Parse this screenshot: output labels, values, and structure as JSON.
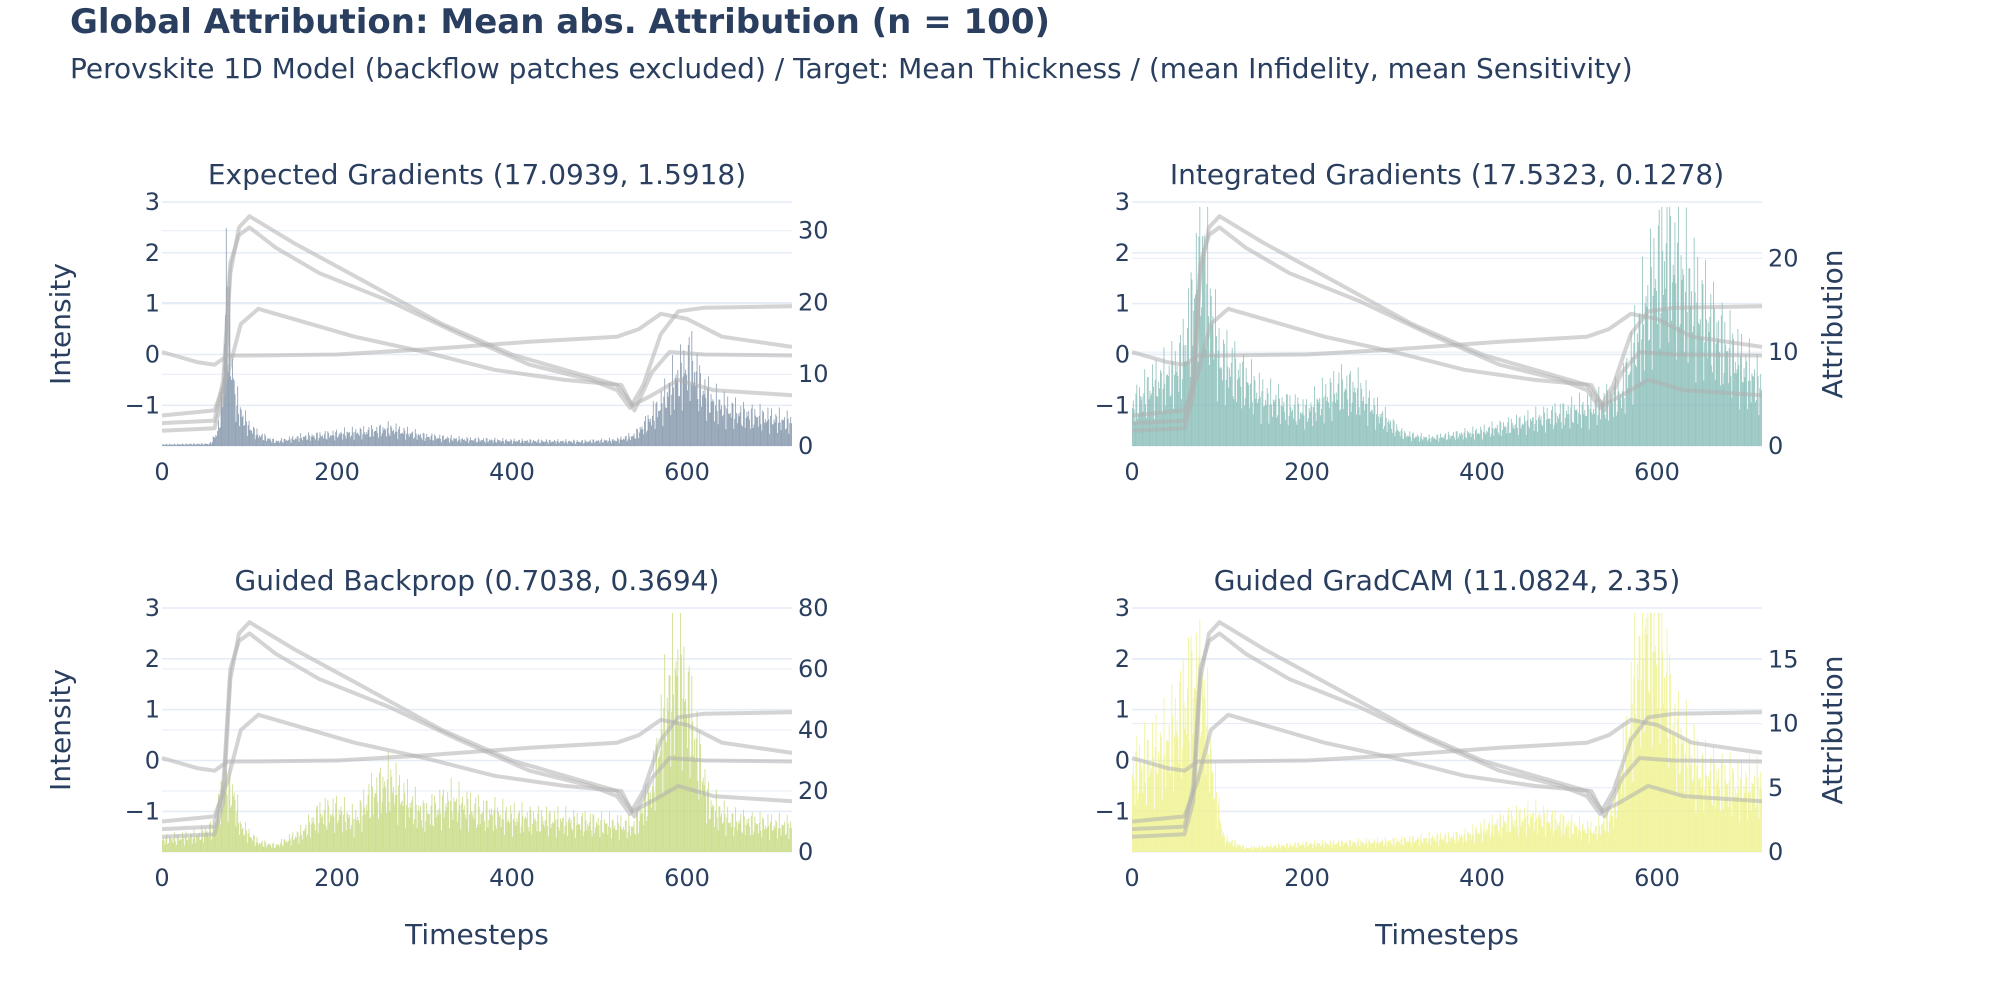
{
  "figure": {
    "title": "Global Attribution: Mean abs. Attribution (n = 100)",
    "subtitle": "Perovskite 1D Model (backflow patches excluded) / Target: Mean Thickness / (mean Infidelity, mean Sensitivity)"
  },
  "colors": {
    "text": "#2a3f5f",
    "grid": "#e5ecf6",
    "signal_lines": "#b0b0b0"
  },
  "chart_data": [
    {
      "type": "bar",
      "title": "Expected Gradients (17.0939, 1.5918)",
      "xlabel": "",
      "ylabel": "Intensity",
      "y2label": "",
      "xlim": [
        0,
        720
      ],
      "xticks": [
        0,
        200,
        400,
        600
      ],
      "ylim": [
        -1.8,
        3
      ],
      "yticks": [
        -1,
        0,
        1,
        2,
        3
      ],
      "y2lim": [
        0,
        34
      ],
      "y2ticks": [
        0,
        10,
        20,
        30
      ],
      "bar_color": "#7f93a8",
      "attribution_profile": [
        [
          0,
          0.2
        ],
        [
          55,
          0.3
        ],
        [
          64,
          2
        ],
        [
          70,
          8
        ],
        [
          74,
          25
        ],
        [
          78,
          14
        ],
        [
          84,
          6
        ],
        [
          92,
          4
        ],
        [
          100,
          2.5
        ],
        [
          110,
          1.5
        ],
        [
          130,
          0.6
        ],
        [
          160,
          1.2
        ],
        [
          200,
          1.6
        ],
        [
          240,
          2
        ],
        [
          260,
          2.3
        ],
        [
          300,
          1.3
        ],
        [
          340,
          0.9
        ],
        [
          400,
          0.7
        ],
        [
          480,
          0.6
        ],
        [
          520,
          0.8
        ],
        [
          540,
          1.4
        ],
        [
          555,
          3.2
        ],
        [
          570,
          5.5
        ],
        [
          585,
          8.5
        ],
        [
          595,
          10
        ],
        [
          605,
          11.5
        ],
        [
          615,
          8
        ],
        [
          630,
          5.8
        ],
        [
          660,
          4.3
        ],
        [
          690,
          3.8
        ],
        [
          720,
          3.2
        ]
      ]
    },
    {
      "type": "bar",
      "title": "Integrated Gradients (17.5323, 0.1278)",
      "xlabel": "",
      "ylabel": "",
      "y2label": "Attribution",
      "xlim": [
        0,
        720
      ],
      "xticks": [
        0,
        200,
        400,
        600
      ],
      "ylim": [
        -1.8,
        3
      ],
      "yticks": [
        -1,
        0,
        1,
        2,
        3
      ],
      "y2lim": [
        0,
        26
      ],
      "y2ticks": [
        0,
        10,
        20
      ],
      "bar_color": "#86bcb6",
      "attribution_profile": [
        [
          0,
          4
        ],
        [
          20,
          6
        ],
        [
          40,
          7
        ],
        [
          55,
          8.5
        ],
        [
          65,
          12
        ],
        [
          75,
          18
        ],
        [
          82,
          20
        ],
        [
          90,
          14
        ],
        [
          100,
          9
        ],
        [
          120,
          7.5
        ],
        [
          150,
          5
        ],
        [
          180,
          4
        ],
        [
          200,
          3.5
        ],
        [
          220,
          5
        ],
        [
          240,
          6
        ],
        [
          260,
          5.5
        ],
        [
          280,
          3.5
        ],
        [
          310,
          1.2
        ],
        [
          340,
          0.8
        ],
        [
          400,
          1.5
        ],
        [
          450,
          2.5
        ],
        [
          500,
          3.5
        ],
        [
          530,
          4
        ],
        [
          560,
          5.5
        ],
        [
          580,
          12
        ],
        [
          600,
          18
        ],
        [
          610,
          20
        ],
        [
          630,
          17
        ],
        [
          650,
          14
        ],
        [
          680,
          10
        ],
        [
          700,
          8
        ],
        [
          720,
          6
        ]
      ]
    },
    {
      "type": "bar",
      "title": "Guided Backprop (0.7038, 0.3694)",
      "xlabel": "Timesteps",
      "ylabel": "Intensity",
      "y2label": "",
      "xlim": [
        0,
        720
      ],
      "xticks": [
        0,
        200,
        400,
        600
      ],
      "ylim": [
        -1.8,
        3
      ],
      "yticks": [
        -1,
        0,
        1,
        2,
        3
      ],
      "y2lim": [
        0,
        80
      ],
      "y2ticks": [
        0,
        20,
        40,
        60,
        80
      ],
      "bar_color": "#c6d97e",
      "attribution_profile": [
        [
          0,
          4
        ],
        [
          40,
          5
        ],
        [
          60,
          8
        ],
        [
          70,
          20
        ],
        [
          80,
          20
        ],
        [
          90,
          8
        ],
        [
          110,
          3
        ],
        [
          130,
          2
        ],
        [
          160,
          6
        ],
        [
          180,
          12
        ],
        [
          200,
          13
        ],
        [
          220,
          10
        ],
        [
          240,
          18
        ],
        [
          260,
          22
        ],
        [
          280,
          16
        ],
        [
          300,
          12
        ],
        [
          330,
          16
        ],
        [
          360,
          13
        ],
        [
          400,
          11
        ],
        [
          450,
          10
        ],
        [
          500,
          9
        ],
        [
          540,
          8
        ],
        [
          560,
          20
        ],
        [
          575,
          45
        ],
        [
          590,
          58
        ],
        [
          600,
          48
        ],
        [
          610,
          35
        ],
        [
          625,
          15
        ],
        [
          650,
          10
        ],
        [
          680,
          9
        ],
        [
          720,
          8
        ]
      ]
    },
    {
      "type": "bar",
      "title": "Guided GradCAM (11.0824, 2.35)",
      "xlabel": "Timesteps",
      "ylabel": "",
      "y2label": "Attribution",
      "xlim": [
        0,
        720
      ],
      "xticks": [
        0,
        200,
        400,
        600
      ],
      "ylim": [
        -1.8,
        3
      ],
      "yticks": [
        -1,
        0,
        1,
        2,
        3
      ],
      "y2lim": [
        0,
        19
      ],
      "y2ticks": [
        0,
        5,
        10,
        15
      ],
      "bar_color": "#eef28c",
      "attribution_profile": [
        [
          0,
          6
        ],
        [
          20,
          7
        ],
        [
          40,
          8
        ],
        [
          60,
          11
        ],
        [
          72,
          13
        ],
        [
          82,
          12
        ],
        [
          92,
          6
        ],
        [
          105,
          1
        ],
        [
          130,
          0.3
        ],
        [
          200,
          0.6
        ],
        [
          300,
          0.8
        ],
        [
          380,
          1.2
        ],
        [
          430,
          2.4
        ],
        [
          460,
          2.7
        ],
        [
          500,
          2
        ],
        [
          530,
          1.6
        ],
        [
          550,
          3
        ],
        [
          565,
          8
        ],
        [
          575,
          13
        ],
        [
          590,
          17
        ],
        [
          605,
          15
        ],
        [
          620,
          9
        ],
        [
          650,
          6
        ],
        [
          690,
          5
        ],
        [
          720,
          5
        ]
      ]
    }
  ],
  "signal_lines": [
    [
      [
        0,
        -1.35
      ],
      [
        60,
        -1.3
      ],
      [
        70,
        -0.5
      ],
      [
        78,
        1.8
      ],
      [
        88,
        2.35
      ],
      [
        100,
        2.5
      ],
      [
        130,
        2.1
      ],
      [
        180,
        1.6
      ],
      [
        260,
        1.05
      ],
      [
        340,
        0.4
      ],
      [
        420,
        -0.2
      ],
      [
        490,
        -0.5
      ],
      [
        520,
        -0.7
      ],
      [
        535,
        -1.05
      ],
      [
        550,
        -0.6
      ],
      [
        570,
        0.4
      ],
      [
        590,
        0.85
      ],
      [
        620,
        0.92
      ],
      [
        720,
        0.95
      ]
    ],
    [
      [
        0,
        -1.5
      ],
      [
        60,
        -1.45
      ],
      [
        70,
        -0.8
      ],
      [
        78,
        1.6
      ],
      [
        88,
        2.5
      ],
      [
        100,
        2.72
      ],
      [
        150,
        2.2
      ],
      [
        230,
        1.45
      ],
      [
        320,
        0.6
      ],
      [
        400,
        0
      ],
      [
        470,
        -0.35
      ],
      [
        520,
        -0.6
      ],
      [
        538,
        -1.0
      ],
      [
        560,
        -0.8
      ],
      [
        590,
        -0.5
      ],
      [
        630,
        -0.7
      ],
      [
        720,
        -0.8
      ]
    ],
    [
      [
        0,
        -1.2
      ],
      [
        60,
        -1.1
      ],
      [
        75,
        -0.4
      ],
      [
        90,
        0.6
      ],
      [
        110,
        0.9
      ],
      [
        150,
        0.7
      ],
      [
        220,
        0.35
      ],
      [
        300,
        0.05
      ],
      [
        380,
        -0.3
      ],
      [
        460,
        -0.5
      ],
      [
        525,
        -0.6
      ],
      [
        540,
        -1.1
      ],
      [
        560,
        -0.35
      ],
      [
        580,
        0.05
      ],
      [
        620,
        0
      ],
      [
        720,
        -0.02
      ]
    ],
    [
      [
        0,
        0.05
      ],
      [
        20,
        -0.05
      ],
      [
        40,
        -0.15
      ],
      [
        60,
        -0.2
      ],
      [
        75,
        -0.02
      ],
      [
        100,
        -0.02
      ],
      [
        200,
        0
      ],
      [
        300,
        0.1
      ],
      [
        420,
        0.25
      ],
      [
        520,
        0.35
      ],
      [
        545,
        0.5
      ],
      [
        570,
        0.8
      ],
      [
        600,
        0.7
      ],
      [
        640,
        0.35
      ],
      [
        680,
        0.25
      ],
      [
        720,
        0.15
      ]
    ]
  ]
}
